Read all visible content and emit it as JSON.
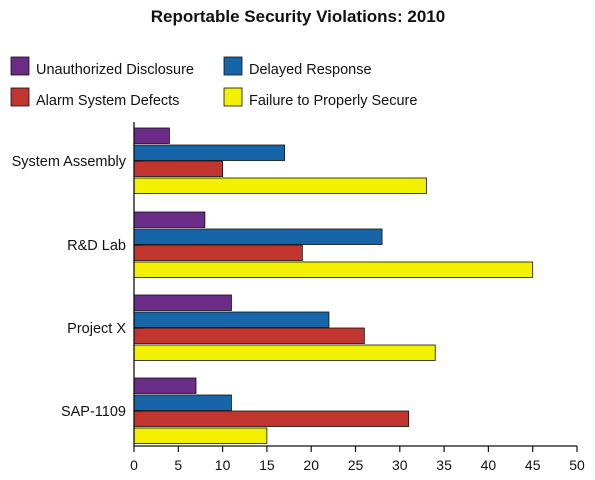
{
  "chart_data": {
    "type": "bar",
    "orientation": "horizontal",
    "title": "Reportable Security Violations: 2010",
    "xlabel": "",
    "ylabel": "",
    "xlim": [
      0,
      50
    ],
    "x_ticks": [
      0,
      5,
      10,
      15,
      20,
      25,
      30,
      35,
      40,
      45,
      50
    ],
    "grid": false,
    "legend_position": "top",
    "categories": [
      "System Assembly",
      "R&D Lab",
      "Project X",
      "SAP-1109"
    ],
    "series": [
      {
        "name": "Unauthorized Disclosure",
        "color": "#6a2c86",
        "values": [
          4,
          8,
          11,
          7
        ]
      },
      {
        "name": "Delayed Response",
        "color": "#1665a8",
        "values": [
          17,
          28,
          22,
          11
        ]
      },
      {
        "name": "Alarm System Defects",
        "color": "#c2352f",
        "values": [
          10,
          19,
          26,
          31
        ]
      },
      {
        "name": "Failure to Properly Secure",
        "color": "#f3f000",
        "values": [
          33,
          45,
          34,
          15
        ]
      }
    ]
  }
}
